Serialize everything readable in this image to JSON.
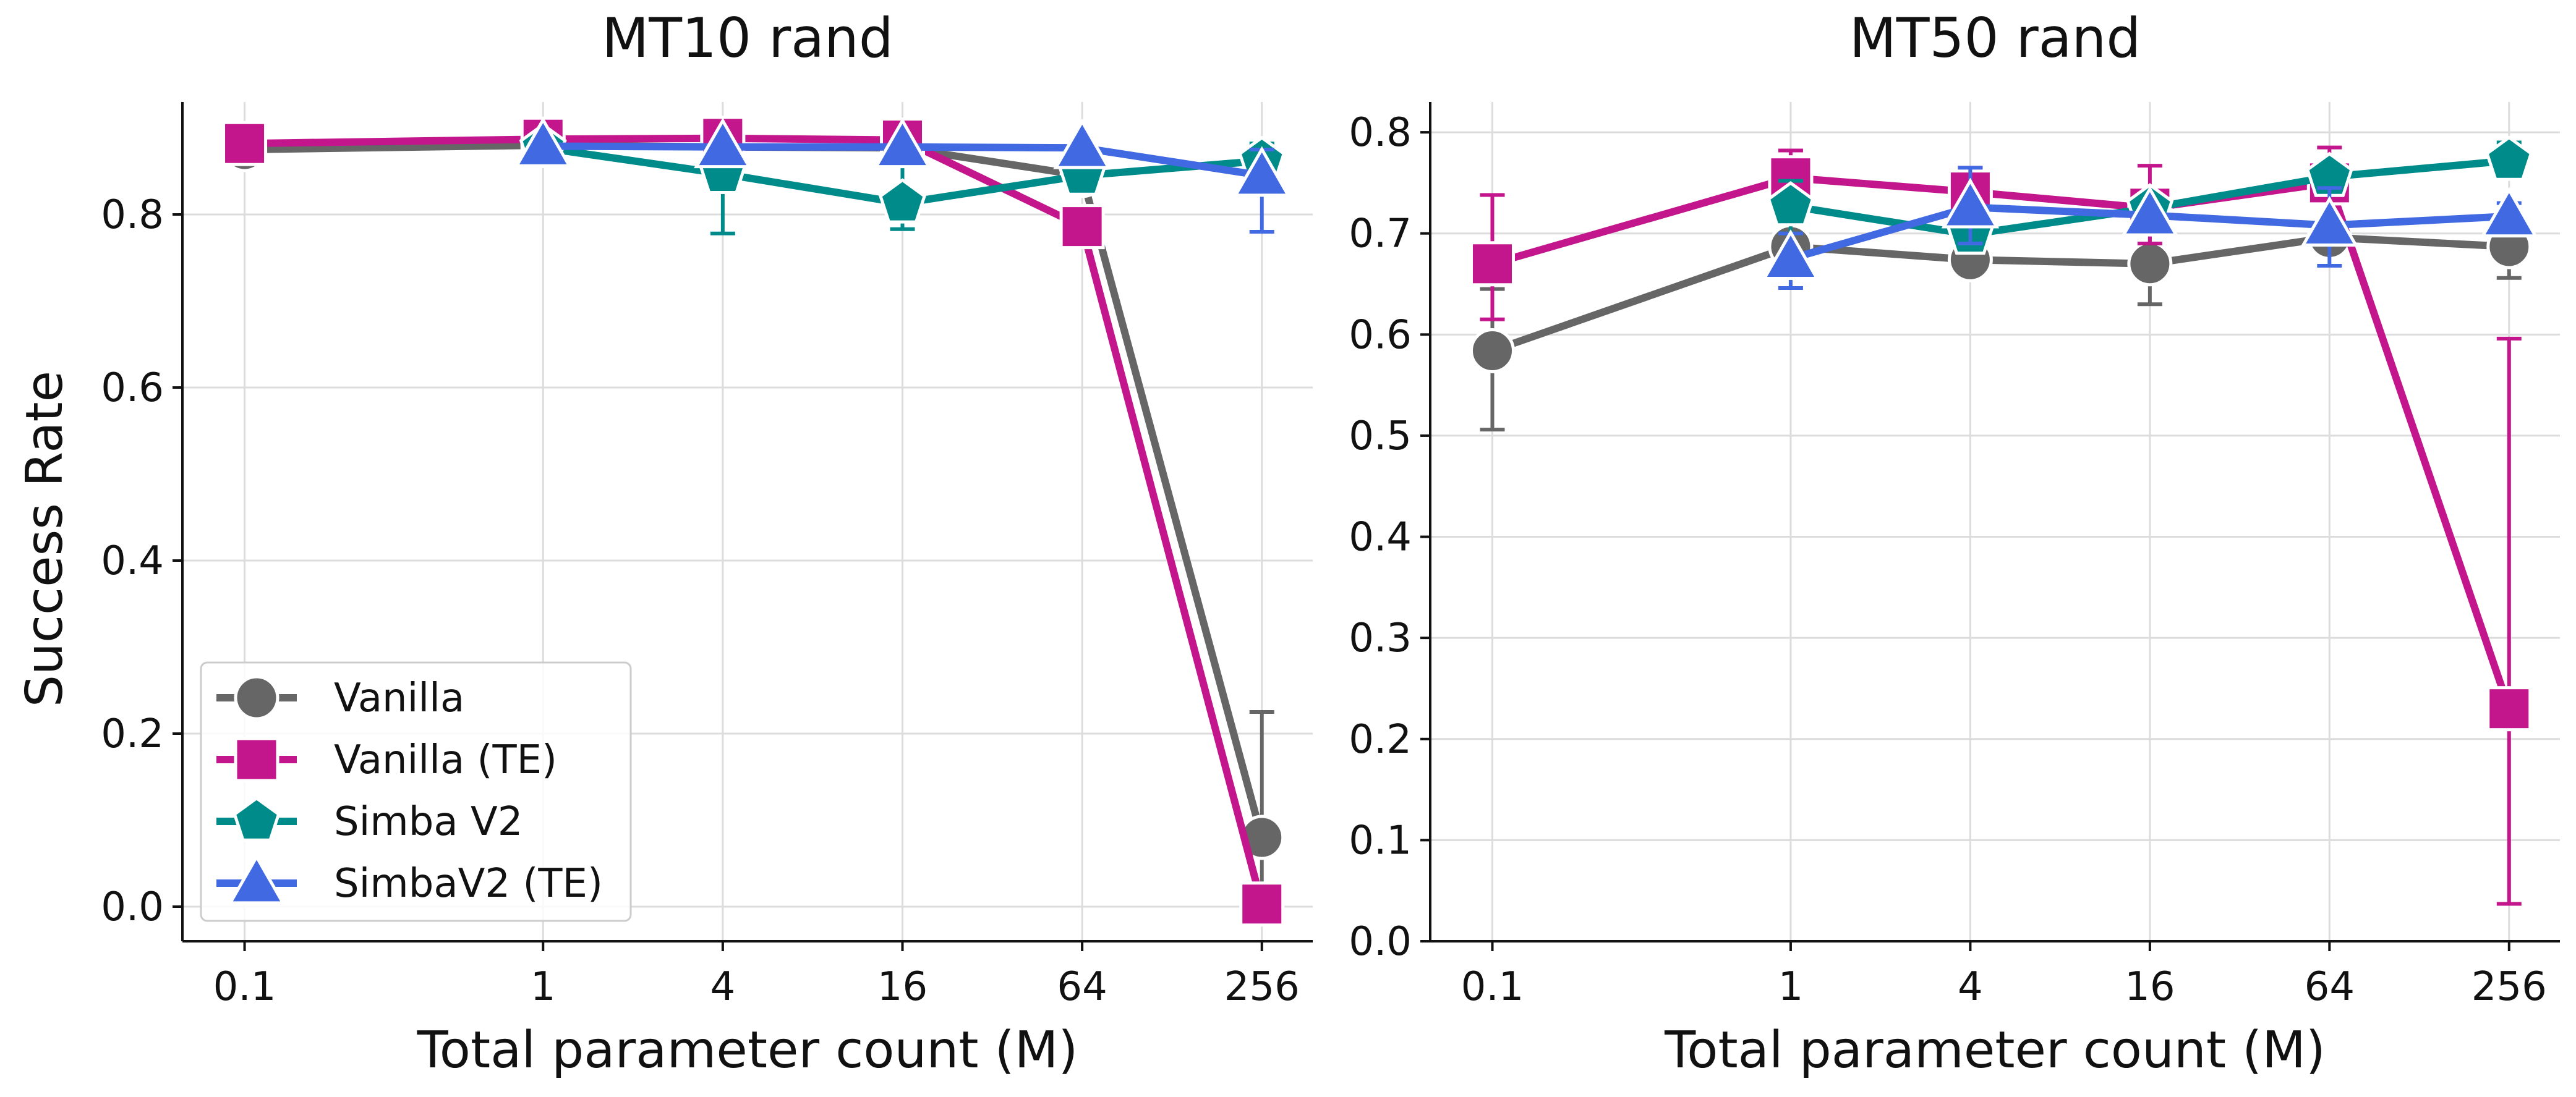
{
  "chart_data": [
    {
      "type": "line",
      "title": "MT10 rand",
      "xlabel": "Total parameter count (M)",
      "ylabel": "Success Rate",
      "x_scale": "log",
      "x_ticks": [
        0.1,
        1,
        4,
        16,
        64,
        256
      ],
      "x_tick_labels": [
        "0.1",
        "1",
        "4",
        "16",
        "64",
        "256"
      ],
      "ylim": [
        -0.04,
        0.93
      ],
      "y_ticks": [
        0.0,
        0.2,
        0.4,
        0.6,
        0.8
      ],
      "y_tick_labels": [
        "0.0",
        "0.2",
        "0.4",
        "0.6",
        "0.8"
      ],
      "grid": true,
      "legend": "lower-left",
      "series": [
        {
          "name": "Vanilla",
          "marker": "circle",
          "color": "#666666",
          "points": [
            {
              "x": 0.1,
              "y": 0.875
            },
            {
              "x": 1,
              "y": 0.88
            },
            {
              "x": 4,
              "y": 0.878
            },
            {
              "x": 16,
              "y": 0.877
            },
            {
              "x": 64,
              "y": 0.845
            },
            {
              "x": 256,
              "y": 0.08,
              "err_lo": 0.0,
              "err_hi": 0.225
            }
          ]
        },
        {
          "name": "Vanilla (TE)",
          "marker": "square",
          "color": "#C4168C",
          "points": [
            {
              "x": 0.1,
              "y": 0.882
            },
            {
              "x": 1,
              "y": 0.887
            },
            {
              "x": 4,
              "y": 0.888
            },
            {
              "x": 16,
              "y": 0.886
            },
            {
              "x": 64,
              "y": 0.786
            },
            {
              "x": 256,
              "y": 0.003
            }
          ]
        },
        {
          "name": "Simba V2",
          "marker": "pentagon",
          "color": "#008B8B",
          "points": [
            {
              "x": 1,
              "y": 0.877
            },
            {
              "x": 4,
              "y": 0.847,
              "err_lo": 0.778,
              "err_hi": 0.875
            },
            {
              "x": 16,
              "y": 0.813,
              "err_lo": 0.783,
              "err_hi": 0.875
            },
            {
              "x": 64,
              "y": 0.845
            },
            {
              "x": 256,
              "y": 0.862,
              "err_lo": 0.84,
              "err_hi": 0.882
            }
          ]
        },
        {
          "name": "SimbaV2 (TE)",
          "marker": "triangle",
          "color": "#4169E1",
          "points": [
            {
              "x": 1,
              "y": 0.879
            },
            {
              "x": 4,
              "y": 0.878
            },
            {
              "x": 16,
              "y": 0.878
            },
            {
              "x": 64,
              "y": 0.877
            },
            {
              "x": 256,
              "y": 0.845,
              "err_lo": 0.78,
              "err_hi": 0.875
            }
          ]
        }
      ]
    },
    {
      "type": "line",
      "title": "MT50 rand",
      "xlabel": "Total parameter count (M)",
      "ylabel": "",
      "x_scale": "log",
      "x_ticks": [
        0.1,
        1,
        4,
        16,
        64,
        256
      ],
      "x_tick_labels": [
        "0.1",
        "1",
        "4",
        "16",
        "64",
        "256"
      ],
      "ylim": [
        0.0,
        0.83
      ],
      "y_ticks": [
        0.0,
        0.1,
        0.2,
        0.3,
        0.4,
        0.5,
        0.6,
        0.7,
        0.8
      ],
      "y_tick_labels": [
        "0.0",
        "0.1",
        "0.2",
        "0.3",
        "0.4",
        "0.5",
        "0.6",
        "0.7",
        "0.8"
      ],
      "grid": true,
      "legend": "none",
      "series": [
        {
          "name": "Vanilla",
          "marker": "circle",
          "color": "#666666",
          "points": [
            {
              "x": 0.1,
              "y": 0.584,
              "err_lo": 0.506,
              "err_hi": 0.645
            },
            {
              "x": 1,
              "y": 0.687
            },
            {
              "x": 4,
              "y": 0.674
            },
            {
              "x": 16,
              "y": 0.67,
              "err_lo": 0.63,
              "err_hi": 0.71
            },
            {
              "x": 64,
              "y": 0.696
            },
            {
              "x": 256,
              "y": 0.687,
              "err_lo": 0.656,
              "err_hi": 0.716
            }
          ]
        },
        {
          "name": "Vanilla (TE)",
          "marker": "square",
          "color": "#C4168C",
          "points": [
            {
              "x": 0.1,
              "y": 0.67,
              "err_lo": 0.615,
              "err_hi": 0.738
            },
            {
              "x": 1,
              "y": 0.755,
              "err_lo": 0.725,
              "err_hi": 0.782
            },
            {
              "x": 4,
              "y": 0.741,
              "err_lo": 0.715,
              "err_hi": 0.765
            },
            {
              "x": 16,
              "y": 0.725,
              "err_lo": 0.69,
              "err_hi": 0.767
            },
            {
              "x": 64,
              "y": 0.75,
              "err_lo": 0.71,
              "err_hi": 0.785
            },
            {
              "x": 256,
              "y": 0.23,
              "err_lo": 0.037,
              "err_hi": 0.596
            }
          ]
        },
        {
          "name": "Simba V2",
          "marker": "pentagon",
          "color": "#008B8B",
          "points": [
            {
              "x": 1,
              "y": 0.727,
              "err_lo": 0.7,
              "err_hi": 0.752
            },
            {
              "x": 4,
              "y": 0.699
            },
            {
              "x": 16,
              "y": 0.725
            },
            {
              "x": 64,
              "y": 0.756
            },
            {
              "x": 256,
              "y": 0.772,
              "err_lo": 0.755,
              "err_hi": 0.79
            }
          ]
        },
        {
          "name": "SimbaV2 (TE)",
          "marker": "triangle",
          "color": "#4169E1",
          "points": [
            {
              "x": 1,
              "y": 0.675,
              "err_lo": 0.646,
              "err_hi": 0.7
            },
            {
              "x": 4,
              "y": 0.726,
              "err_lo": 0.69,
              "err_hi": 0.765
            },
            {
              "x": 16,
              "y": 0.718
            },
            {
              "x": 64,
              "y": 0.708,
              "err_lo": 0.668,
              "err_hi": 0.745
            },
            {
              "x": 256,
              "y": 0.717,
              "err_lo": 0.703,
              "err_hi": 0.73
            }
          ]
        }
      ]
    }
  ]
}
